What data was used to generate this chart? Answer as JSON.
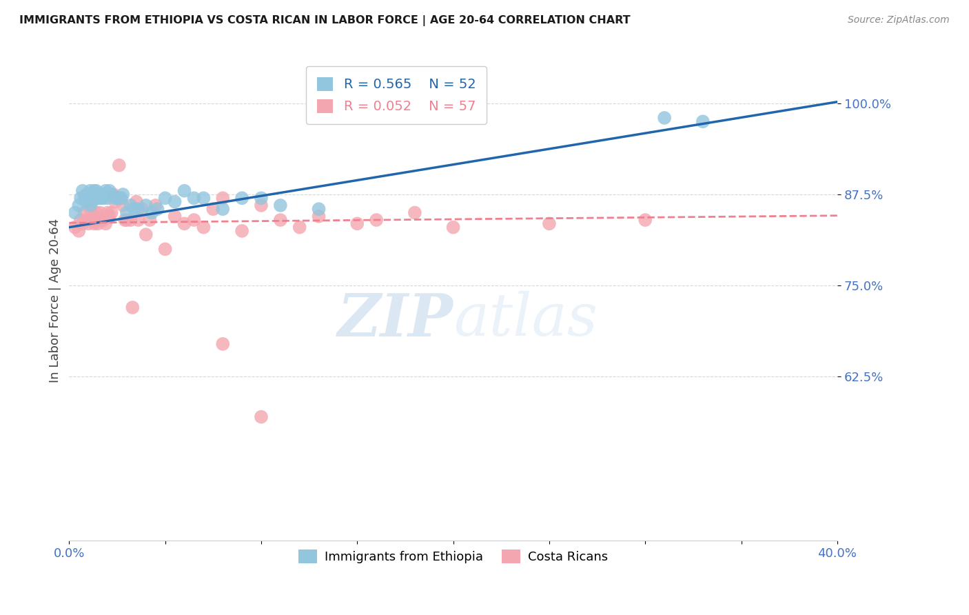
{
  "title": "IMMIGRANTS FROM ETHIOPIA VS COSTA RICAN IN LABOR FORCE | AGE 20-64 CORRELATION CHART",
  "source": "Source: ZipAtlas.com",
  "ylabel": "In Labor Force | Age 20-64",
  "yticks": [
    0.625,
    0.75,
    0.875,
    1.0
  ],
  "ytick_labels": [
    "62.5%",
    "75.0%",
    "87.5%",
    "100.0%"
  ],
  "xmin": 0.0,
  "xmax": 0.4,
  "ymin": 0.4,
  "ymax": 1.06,
  "legend_r1": "R = 0.565",
  "legend_n1": "N = 52",
  "legend_r2": "R = 0.052",
  "legend_n2": "N = 57",
  "watermark_zip": "ZIP",
  "watermark_atlas": "atlas",
  "blue_color": "#92c5de",
  "pink_color": "#f4a6b0",
  "blue_line_color": "#2166ac",
  "pink_line_color": "#f08090",
  "axis_color": "#4472c4",
  "grid_color": "#d3d3d3",
  "ethiopia_x": [
    0.003,
    0.005,
    0.006,
    0.007,
    0.008,
    0.009,
    0.009,
    0.01,
    0.01,
    0.011,
    0.011,
    0.012,
    0.012,
    0.013,
    0.013,
    0.014,
    0.014,
    0.015,
    0.015,
    0.016,
    0.016,
    0.017,
    0.017,
    0.018,
    0.018,
    0.019,
    0.02,
    0.021,
    0.022,
    0.024,
    0.025,
    0.027,
    0.028,
    0.03,
    0.032,
    0.034,
    0.036,
    0.04,
    0.043,
    0.046,
    0.05,
    0.055,
    0.06,
    0.065,
    0.07,
    0.08,
    0.09,
    0.1,
    0.11,
    0.13,
    0.31,
    0.33
  ],
  "ethiopia_y": [
    0.85,
    0.86,
    0.87,
    0.88,
    0.87,
    0.875,
    0.865,
    0.875,
    0.87,
    0.88,
    0.86,
    0.875,
    0.865,
    0.87,
    0.88,
    0.87,
    0.88,
    0.87,
    0.875,
    0.875,
    0.87,
    0.875,
    0.87,
    0.875,
    0.87,
    0.88,
    0.87,
    0.88,
    0.875,
    0.87,
    0.87,
    0.87,
    0.875,
    0.85,
    0.86,
    0.855,
    0.855,
    0.86,
    0.85,
    0.855,
    0.87,
    0.865,
    0.88,
    0.87,
    0.87,
    0.855,
    0.87,
    0.87,
    0.86,
    0.855,
    0.98,
    0.975
  ],
  "costarica_x": [
    0.003,
    0.005,
    0.006,
    0.007,
    0.008,
    0.009,
    0.01,
    0.011,
    0.012,
    0.013,
    0.013,
    0.014,
    0.015,
    0.015,
    0.016,
    0.017,
    0.018,
    0.019,
    0.02,
    0.021,
    0.022,
    0.023,
    0.024,
    0.025,
    0.026,
    0.027,
    0.028,
    0.029,
    0.03,
    0.032,
    0.033,
    0.035,
    0.036,
    0.038,
    0.04,
    0.042,
    0.045,
    0.05,
    0.055,
    0.06,
    0.065,
    0.07,
    0.075,
    0.08,
    0.09,
    0.1,
    0.11,
    0.13,
    0.15,
    0.18,
    0.08,
    0.1,
    0.12,
    0.16,
    0.2,
    0.25,
    0.3
  ],
  "costarica_y": [
    0.83,
    0.825,
    0.84,
    0.835,
    0.85,
    0.84,
    0.835,
    0.855,
    0.84,
    0.845,
    0.835,
    0.85,
    0.84,
    0.835,
    0.85,
    0.84,
    0.84,
    0.835,
    0.85,
    0.845,
    0.85,
    0.875,
    0.865,
    0.87,
    0.915,
    0.87,
    0.86,
    0.84,
    0.84,
    0.84,
    0.72,
    0.865,
    0.84,
    0.855,
    0.82,
    0.84,
    0.86,
    0.8,
    0.845,
    0.835,
    0.84,
    0.83,
    0.855,
    0.87,
    0.825,
    0.86,
    0.84,
    0.845,
    0.835,
    0.85,
    0.67,
    0.57,
    0.83,
    0.84,
    0.83,
    0.835,
    0.84
  ],
  "blue_line_x0": 0.0,
  "blue_line_y0": 0.83,
  "blue_line_x1": 0.4,
  "blue_line_y1": 1.002,
  "pink_line_x0": 0.0,
  "pink_line_y0": 0.836,
  "pink_line_x1": 0.4,
  "pink_line_y1": 0.846
}
